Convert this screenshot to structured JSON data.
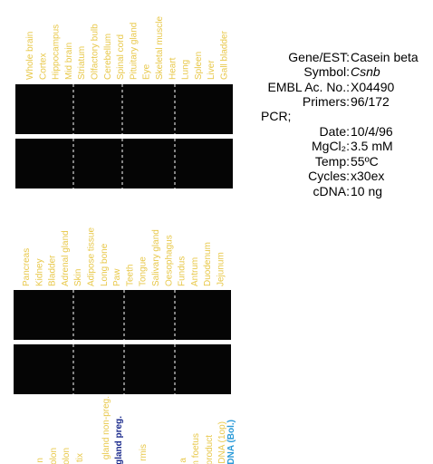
{
  "gel_top": {
    "lanes": [
      "Whole brain",
      "Cortex",
      "Hippocampus",
      "Mid brain",
      "Striatum",
      "Olfactory bulb",
      "Cerebellum",
      "Spinal cord",
      "Pituitary gland",
      "Eye",
      "Skeletal muscle",
      "Heart",
      "Lung",
      "Spleen",
      "Liver",
      "Gall bladder"
    ]
  },
  "gel_middle": {
    "lanes": [
      "Pancreas",
      "Kidney",
      "Bladder",
      "Adrenal gland",
      "Skin",
      "Adipose tissue",
      "Long bone",
      "Paw",
      "Teeth",
      "Tongue",
      "Salivary gland",
      "Oesophagus",
      "Fundus",
      "Antrum",
      "Duodenum",
      "Jejunum"
    ]
  },
  "gel_bottom": {
    "lanes": [
      "n",
      "olon",
      "olon",
      "tix",
      "gland non-preg.",
      "gland preg.",
      "rmis",
      "a",
      "m foetus",
      "product",
      "DNA (1op)",
      "DNA (Bol.)"
    ]
  },
  "info": {
    "rows": [
      {
        "label": "Gene/EST:",
        "value": "Casein beta"
      },
      {
        "label": "Symbol:",
        "value": "Csnb"
      },
      {
        "label": "EMBL Ac. No.:",
        "value": "X04490"
      },
      {
        "label": "Primers:",
        "value": "96/172"
      },
      {
        "label": "PCR;"
      },
      {
        "label": "Date:",
        "value": "10/4/96"
      },
      {
        "label": "MgCl₂:",
        "value": "3.5 mM"
      },
      {
        "label": "Temp:",
        "value": "55ºC"
      },
      {
        "label": "Cycles:",
        "value": "x30ex"
      },
      {
        "label": "cDNA:",
        "value": "10 ng"
      }
    ]
  }
}
